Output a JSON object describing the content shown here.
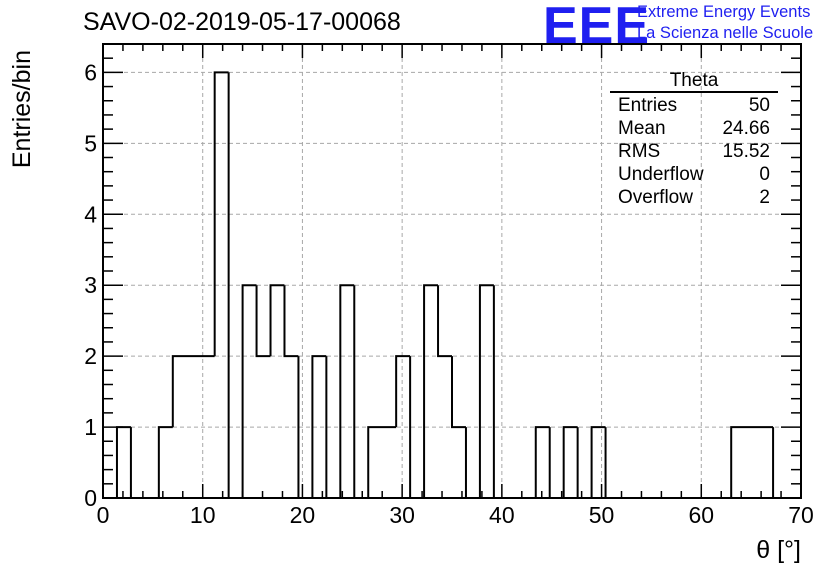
{
  "header": {
    "run_title": "SAVO-02-2019-05-17-00068",
    "logo_text": "EEE",
    "logo_line1": "Extreme Energy Events",
    "logo_line2": "La Scienza nelle Scuole",
    "logo_color": "#1f1ff0"
  },
  "stats": {
    "title": "Theta",
    "rows": [
      {
        "label": "Entries",
        "value": "50"
      },
      {
        "label": "Mean",
        "value": "24.66"
      },
      {
        "label": "RMS",
        "value": "15.52"
      },
      {
        "label": "Underflow",
        "value": "0"
      },
      {
        "label": "Overflow",
        "value": "2"
      }
    ]
  },
  "chart_data": {
    "type": "bar",
    "style": "step-histogram",
    "xlabel": "θ [°]",
    "ylabel": "Entries/bin",
    "xlim": [
      0,
      70
    ],
    "ylim": [
      0,
      6.4
    ],
    "x_ticks": [
      0,
      10,
      20,
      30,
      40,
      50,
      60,
      70
    ],
    "y_ticks": [
      0,
      1,
      2,
      3,
      4,
      5,
      6
    ],
    "grid": true,
    "bins": [
      {
        "x0": 1.4,
        "x1": 2.8,
        "y": 1
      },
      {
        "x0": 2.8,
        "x1": 5.6,
        "y": 0
      },
      {
        "x0": 5.6,
        "x1": 7.0,
        "y": 1
      },
      {
        "x0": 7.0,
        "x1": 11.2,
        "y": 2
      },
      {
        "x0": 11.2,
        "x1": 12.6,
        "y": 6
      },
      {
        "x0": 12.6,
        "x1": 14.0,
        "y": 0
      },
      {
        "x0": 14.0,
        "x1": 15.4,
        "y": 3
      },
      {
        "x0": 15.4,
        "x1": 16.8,
        "y": 2
      },
      {
        "x0": 16.8,
        "x1": 18.2,
        "y": 3
      },
      {
        "x0": 18.2,
        "x1": 19.6,
        "y": 2
      },
      {
        "x0": 19.6,
        "x1": 21.0,
        "y": 0
      },
      {
        "x0": 21.0,
        "x1": 22.4,
        "y": 2
      },
      {
        "x0": 22.4,
        "x1": 23.8,
        "y": 0
      },
      {
        "x0": 23.8,
        "x1": 25.2,
        "y": 3
      },
      {
        "x0": 25.2,
        "x1": 26.6,
        "y": 0
      },
      {
        "x0": 26.6,
        "x1": 29.4,
        "y": 1
      },
      {
        "x0": 29.4,
        "x1": 30.8,
        "y": 2
      },
      {
        "x0": 30.8,
        "x1": 32.2,
        "y": 0
      },
      {
        "x0": 32.2,
        "x1": 33.6,
        "y": 3
      },
      {
        "x0": 33.6,
        "x1": 35.0,
        "y": 2
      },
      {
        "x0": 35.0,
        "x1": 36.4,
        "y": 1
      },
      {
        "x0": 36.4,
        "x1": 37.8,
        "y": 0
      },
      {
        "x0": 37.8,
        "x1": 39.2,
        "y": 3
      },
      {
        "x0": 39.2,
        "x1": 43.4,
        "y": 0
      },
      {
        "x0": 43.4,
        "x1": 44.8,
        "y": 1
      },
      {
        "x0": 44.8,
        "x1": 46.2,
        "y": 0
      },
      {
        "x0": 46.2,
        "x1": 47.6,
        "y": 1
      },
      {
        "x0": 47.6,
        "x1": 49.0,
        "y": 0
      },
      {
        "x0": 49.0,
        "x1": 50.4,
        "y": 1
      },
      {
        "x0": 50.4,
        "x1": 63.0,
        "y": 0
      },
      {
        "x0": 63.0,
        "x1": 67.2,
        "y": 1
      }
    ],
    "line_color": "#000000",
    "grid_color": "#a8a8a8"
  }
}
